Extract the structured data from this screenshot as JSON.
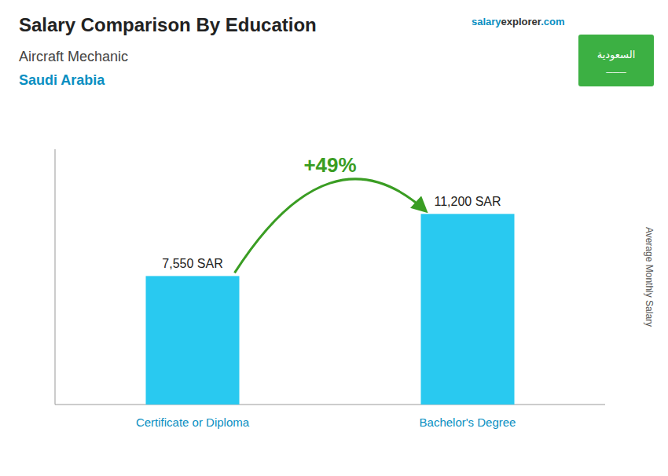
{
  "chart_data": {
    "type": "bar",
    "title": "Salary Comparison By Education",
    "subtitle": "Aircraft Mechanic",
    "y_label": "Average Monthly Salary",
    "annotations": [
      "Saudi Arabia",
      "+49%",
      "salary",
      "explorer",
      ".com",
      "السعودية",
      "───"
    ],
    "categories": [
      "Certificate or Diploma",
      "Bachelor's Degree"
    ],
    "values": [
      7550,
      11200
    ],
    "value_labels": [
      "7,550 SAR",
      "11,200 SAR"
    ],
    "data_labels": true,
    "color": "#29C9F0",
    "ylim": [
      0,
      15000
    ],
    "tick_labels": false,
    "grid": false
  }
}
